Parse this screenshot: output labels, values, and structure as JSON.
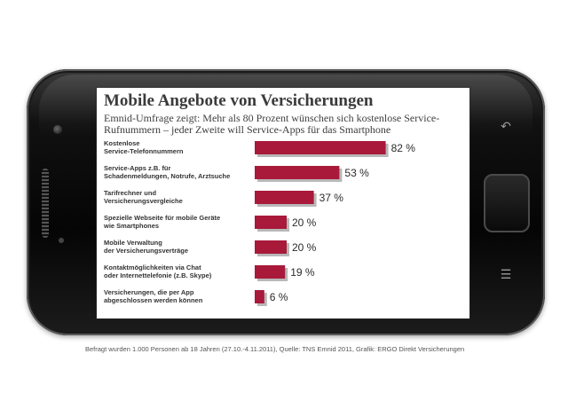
{
  "title": "Mobile Angebote von Versicherungen",
  "subtitle": "Emnid-Umfrage zeigt: Mehr als 80 Prozent  wünschen sich kostenlose Service-Rufnummern – jeder Zweite will Service-Apps für das Smartphone",
  "footnote": "Befragt wurden 1.000 Personen ab 18 Jahren (27.10.-4.11.2011), Quelle: TNS Emnid 2011, Grafik: ERGO Direkt Versicherungen",
  "colors": {
    "bar": "#a8193a",
    "text": "#333333"
  },
  "chart_data": {
    "type": "bar",
    "orientation": "horizontal",
    "unit": "%",
    "categories": [
      [
        "Kostenlose",
        "Service-Telefonnummern"
      ],
      [
        "Service-Apps z.B. für",
        "Schadenmeldungen, Notrufe, Arztsuche"
      ],
      [
        "Tarifrechner und",
        "Versicherungsvergleiche"
      ],
      [
        "Spezielle Webseite für mobile Geräte",
        "wie Smartphones"
      ],
      [
        "Mobile Verwaltung",
        "der Versicherungsverträge"
      ],
      [
        "Kontaktmöglichkeiten via Chat",
        "oder Internettelefonie (z.B. Skype)"
      ],
      [
        "Versicherungen, die per App",
        "abgeschlossen werden können"
      ]
    ],
    "values": [
      82,
      53,
      37,
      20,
      20,
      19,
      6
    ],
    "value_labels": [
      "82 %",
      "53 %",
      "37 %",
      "20 %",
      "20 %",
      "19 %",
      "6 %"
    ],
    "xlim": [
      0,
      100
    ],
    "grid": false,
    "legend": "none"
  }
}
